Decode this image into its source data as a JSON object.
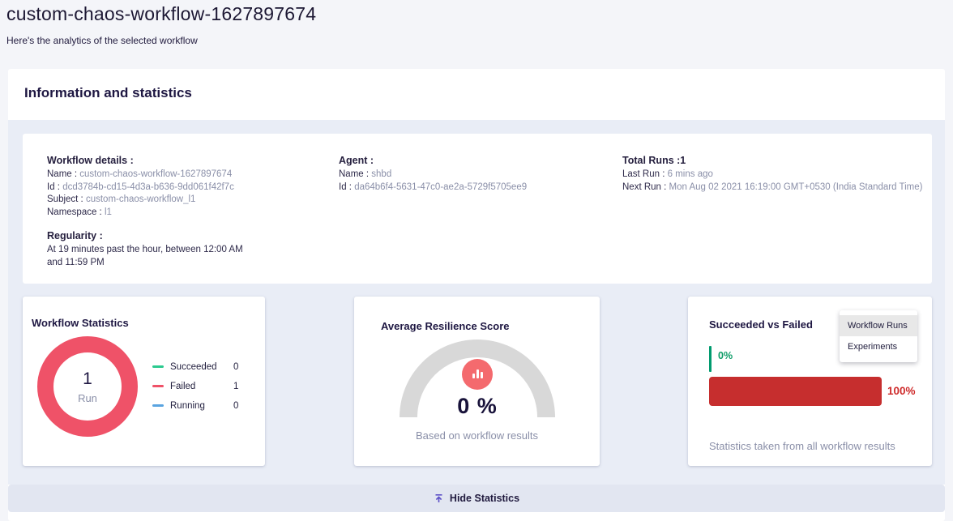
{
  "page": {
    "title": "custom-chaos-workflow-1627897674",
    "subtitle": "Here's the analytics of the selected workflow"
  },
  "section": {
    "heading": "Information and statistics",
    "footer_button": {
      "label": "Hide Statistics",
      "icon": "collapse-up-icon"
    }
  },
  "details": {
    "workflow": {
      "heading": "Workflow details :",
      "fields": [
        {
          "label": "Name :",
          "value": "custom-chaos-workflow-1627897674"
        },
        {
          "label": "Id :",
          "value": "dcd3784b-cd15-4d3a-b636-9dd061f42f7c"
        },
        {
          "label": "Subject :",
          "value": "custom-chaos-workflow_l1"
        },
        {
          "label": "Namespace :",
          "value": "l1"
        }
      ],
      "regularity_heading": "Regularity :",
      "regularity_text": "At 19 minutes past the hour, between 12:00 AM and 11:59 PM"
    },
    "agent": {
      "heading": "Agent :",
      "fields": [
        {
          "label": "Name :",
          "value": "shbd"
        },
        {
          "label": "Id :",
          "value": "da64b6f4-5631-47c0-ae2a-5729f5705ee9"
        }
      ]
    },
    "runs": {
      "heading": "Total Runs :1",
      "fields": [
        {
          "label": "Last Run :",
          "value": "6 mins ago"
        },
        {
          "label": "Next Run :",
          "value": "Mon Aug 02 2021 16:19:00 GMT+0530 (India Standard Time)"
        }
      ]
    }
  },
  "cards": {
    "workflow_statistics": {
      "title": "Workflow Statistics",
      "chart_type": "donut",
      "donut": {
        "value": "1",
        "label": "Run",
        "color": "#ef5268"
      },
      "legend": [
        {
          "label": "Succeeded",
          "value": "0",
          "color": "#2cca8f"
        },
        {
          "label": "Failed",
          "value": "1",
          "color": "#ef5268"
        },
        {
          "label": "Running",
          "value": "0",
          "color": "#5aa4e0"
        }
      ]
    },
    "average_resilience_score": {
      "title": "Average Resilience Score",
      "chart_type": "gauge",
      "score": "0 %",
      "caption": "Based on workflow results",
      "gauge_color": "#d8d8d8",
      "icon": "bar-chart-icon",
      "icon_color": "#f46a6e"
    },
    "succeeded_vs_failed": {
      "title": "Succeeded vs Failed",
      "chart_type": "bar",
      "menu": {
        "items": [
          {
            "label": "Workflow Runs",
            "selected": true
          },
          {
            "label": "Experiments",
            "selected": false
          }
        ]
      },
      "bars": [
        {
          "name": "Succeeded",
          "label": "0%",
          "value": 0,
          "color": "#019b6f",
          "label_color": "#0d9c67"
        },
        {
          "name": "Failed",
          "label": "100%",
          "value": 100,
          "color": "#c62e2e",
          "label_color": "#ce2b2b"
        }
      ],
      "caption": "Statistics taken from all workflow results"
    }
  }
}
